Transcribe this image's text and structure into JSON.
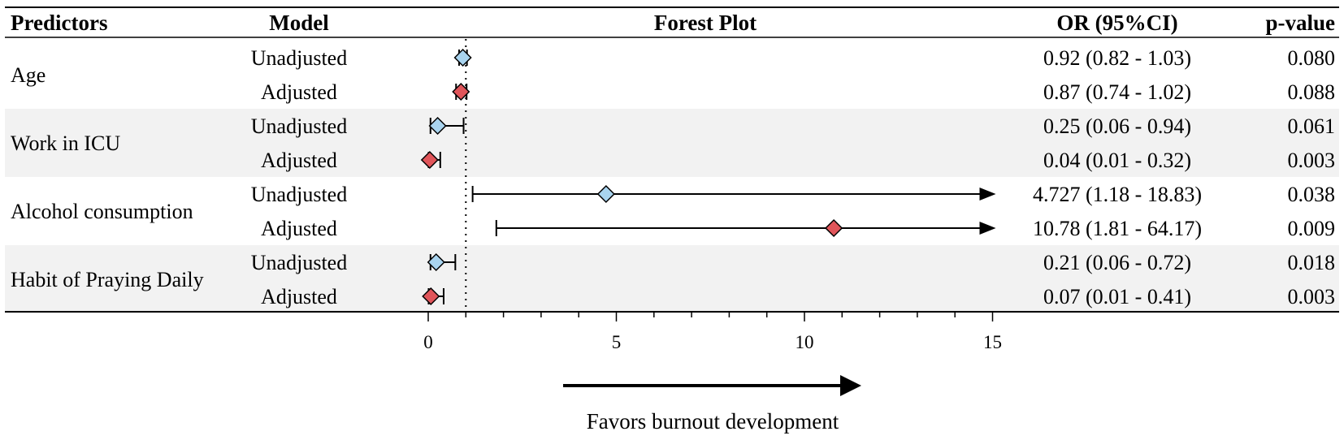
{
  "chart_data": {
    "type": "forest",
    "columns": {
      "predictors": "Predictors",
      "model": "Model",
      "plot": "Forest Plot",
      "or": "OR (95%CI)",
      "p": "p-value"
    },
    "reference_line": 1,
    "xlim": [
      0,
      15
    ],
    "x_ticks": [
      0,
      5,
      10,
      15
    ],
    "x_minor_step": 1,
    "groups": [
      {
        "predictor": "Age",
        "shaded": false,
        "rows": [
          {
            "model": "Unadjusted",
            "or": 0.92,
            "lo": 0.82,
            "hi": 1.03,
            "or_text": "0.92 (0.82 - 1.03)",
            "p": "0.080",
            "color": "#a9d4ef",
            "arrow": false
          },
          {
            "model": "Adjusted",
            "or": 0.87,
            "lo": 0.74,
            "hi": 1.02,
            "or_text": "0.87 (0.74 - 1.02)",
            "p": "0.088",
            "color": "#e0555a",
            "arrow": false
          }
        ]
      },
      {
        "predictor": "Work in ICU",
        "shaded": true,
        "rows": [
          {
            "model": "Unadjusted",
            "or": 0.25,
            "lo": 0.06,
            "hi": 0.94,
            "or_text": "0.25 (0.06 - 0.94)",
            "p": "0.061",
            "color": "#a9d4ef",
            "arrow": false
          },
          {
            "model": "Adjusted",
            "or": 0.04,
            "lo": 0.01,
            "hi": 0.32,
            "or_text": "0.04 (0.01 - 0.32)",
            "p": "0.003",
            "color": "#e0555a",
            "arrow": false
          }
        ]
      },
      {
        "predictor": "Alcohol consumption",
        "shaded": false,
        "rows": [
          {
            "model": "Unadjusted",
            "or": 4.727,
            "lo": 1.18,
            "hi": 18.83,
            "or_text": "4.727 (1.18 - 18.83)",
            "p": "0.038",
            "color": "#a9d4ef",
            "arrow": true
          },
          {
            "model": "Adjusted",
            "or": 10.78,
            "lo": 1.81,
            "hi": 64.17,
            "or_text": "10.78 (1.81 - 64.17)",
            "p": "0.009",
            "color": "#e0555a",
            "arrow": true
          }
        ]
      },
      {
        "predictor": "Habit of Praying Daily",
        "shaded": true,
        "rows": [
          {
            "model": "Unadjusted",
            "or": 0.21,
            "lo": 0.06,
            "hi": 0.72,
            "or_text": "0.21 (0.06 - 0.72)",
            "p": "0.018",
            "color": "#a9d4ef",
            "arrow": false
          },
          {
            "model": "Adjusted",
            "or": 0.07,
            "lo": 0.01,
            "hi": 0.41,
            "or_text": "0.07 (0.01 - 0.41)",
            "p": "0.003",
            "color": "#e0555a",
            "arrow": false
          }
        ]
      }
    ],
    "direction_label": "Favors burnout development",
    "shade_color": "#f2f2f2"
  }
}
